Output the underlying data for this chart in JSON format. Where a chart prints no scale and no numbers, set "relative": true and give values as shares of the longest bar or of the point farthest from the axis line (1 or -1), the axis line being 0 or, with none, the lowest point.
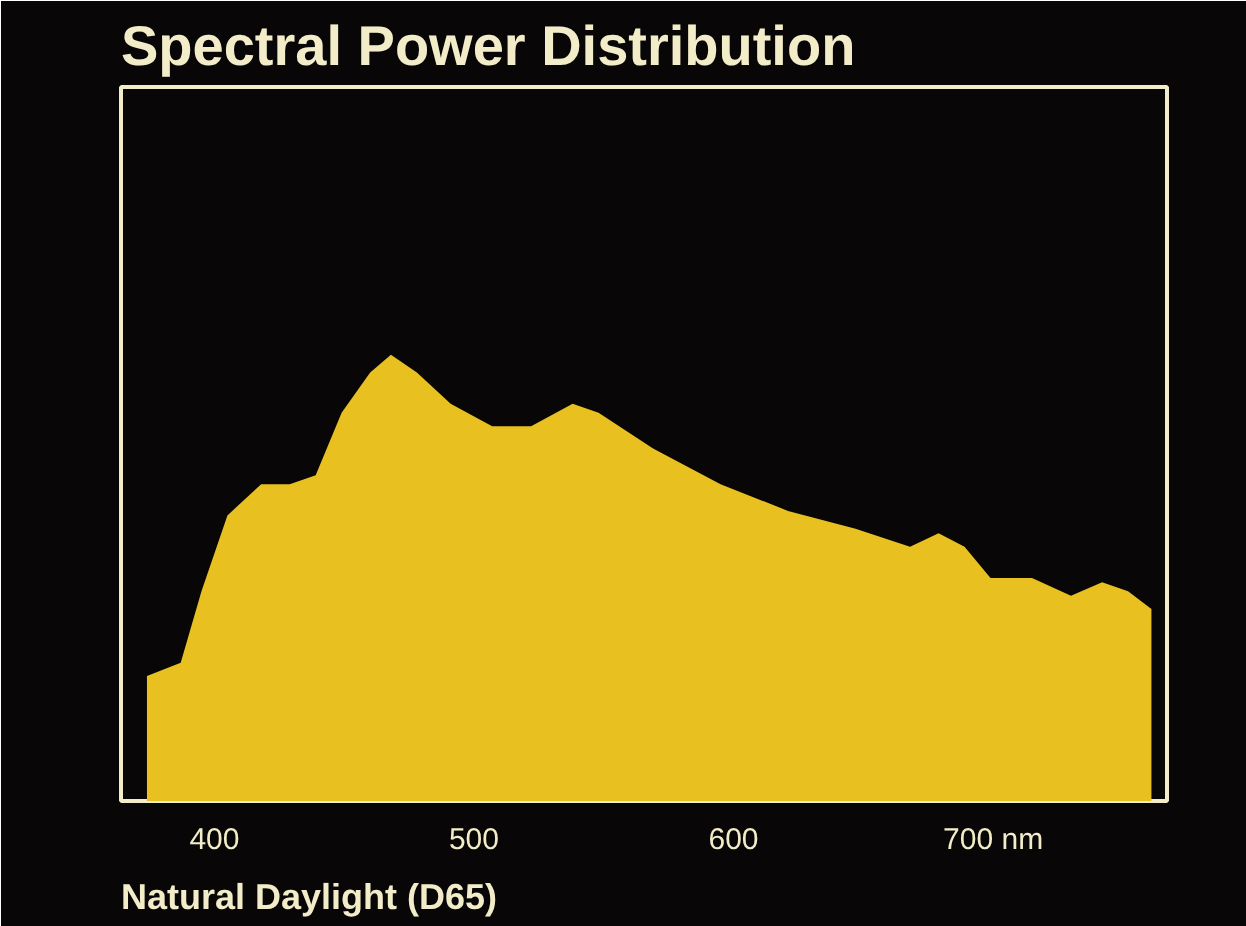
{
  "chart_data": {
    "type": "area",
    "title": "Spectral Power Distribution",
    "relative": true,
    "x": [
      374,
      387,
      395,
      405,
      418,
      429,
      439,
      449,
      460,
      468,
      478,
      491,
      507,
      522,
      538,
      548,
      569,
      595,
      621,
      647,
      668,
      679,
      689,
      699,
      715,
      730,
      742,
      752,
      761
    ],
    "series": [
      {
        "color": "#e8c020",
        "values": [
          0.28,
          0.31,
          0.47,
          0.64,
          0.71,
          0.71,
          0.73,
          0.87,
          0.96,
          1.0,
          0.96,
          0.89,
          0.84,
          0.84,
          0.89,
          0.87,
          0.79,
          0.71,
          0.65,
          0.61,
          0.57,
          0.6,
          0.57,
          0.5,
          0.5,
          0.46,
          0.49,
          0.47,
          0.43
        ]
      }
    ],
    "xlim": [
      364,
      767
    ],
    "xticks": [
      400,
      500,
      600,
      {
        "value": 700,
        "label": "700 nm"
      }
    ],
    "annotations": [
      "Natural Daylight (D65)"
    ]
  }
}
